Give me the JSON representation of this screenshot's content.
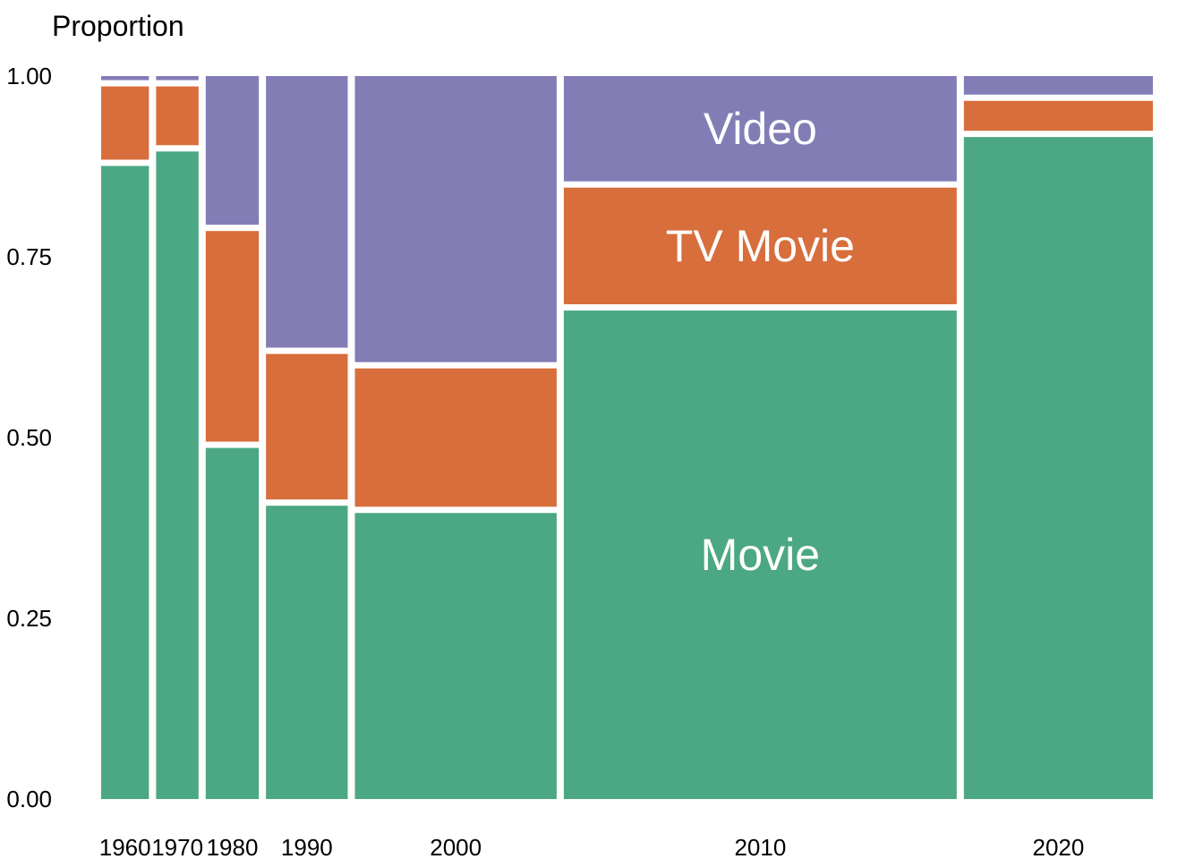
{
  "chart_data": {
    "type": "mosaic",
    "ylabel": "Proportion",
    "ylim": [
      0,
      1
    ],
    "yticks": [
      "0.00",
      "0.25",
      "0.50",
      "0.75",
      "1.00"
    ],
    "categories": [
      "1960",
      "1970",
      "1980",
      "1990",
      "2000",
      "2010",
      "2020"
    ],
    "category_widths": [
      0.045,
      0.04,
      0.05,
      0.077,
      0.19,
      0.37,
      0.178
    ],
    "series": [
      {
        "name": "Movie",
        "color": "#4ca784",
        "values": [
          0.88,
          0.9,
          0.49,
          0.41,
          0.4,
          0.68,
          0.92
        ]
      },
      {
        "name": "TV Movie",
        "color": "#d86e3c",
        "values": [
          0.11,
          0.09,
          0.3,
          0.21,
          0.2,
          0.17,
          0.05
        ]
      },
      {
        "name": "Video",
        "color": "#837db6",
        "values": [
          0.01,
          0.01,
          0.21,
          0.38,
          0.4,
          0.15,
          0.03
        ]
      }
    ],
    "annotations": [
      {
        "text": "Movie",
        "series": "Movie",
        "category": "2010"
      },
      {
        "text": "TV Movie",
        "series": "TV Movie",
        "category": "2010"
      },
      {
        "text": "Video",
        "series": "Video",
        "category": "2010"
      }
    ],
    "grid": false,
    "legend": "none"
  }
}
